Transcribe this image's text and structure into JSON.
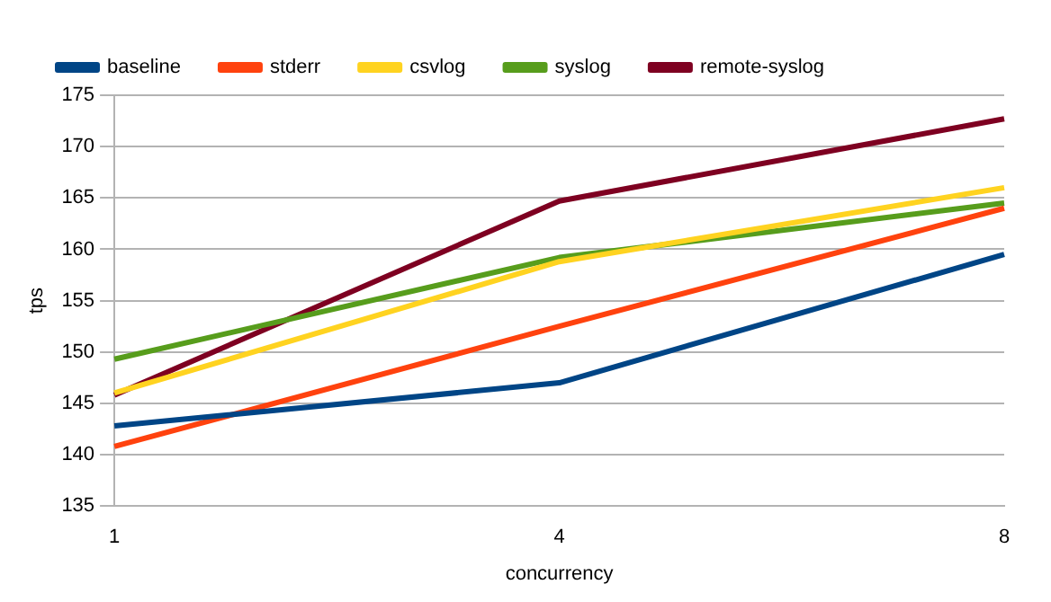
{
  "chart_data": {
    "type": "line",
    "xlabel": "concurrency",
    "ylabel": "tps",
    "categories": [
      "1",
      "4",
      "8"
    ],
    "ylim": [
      135,
      175
    ],
    "yticks": [
      135,
      140,
      145,
      150,
      155,
      160,
      165,
      170,
      175
    ],
    "grid": "y",
    "legend": "top",
    "marker": "none",
    "line_style": "solid",
    "series": [
      {
        "name": "baseline",
        "color": "#004586",
        "values": [
          142.8,
          147,
          159.5
        ]
      },
      {
        "name": "stderr",
        "color": "#ff420e",
        "values": [
          140.8,
          152.5,
          164
        ]
      },
      {
        "name": "csvlog",
        "color": "#ffd320",
        "values": [
          146,
          158.8,
          166
        ]
      },
      {
        "name": "syslog",
        "color": "#579d1c",
        "values": [
          149.3,
          159.2,
          164.5
        ]
      },
      {
        "name": "remote-syslog",
        "color": "#7e0021",
        "values": [
          145.8,
          164.7,
          172.7
        ]
      }
    ]
  }
}
